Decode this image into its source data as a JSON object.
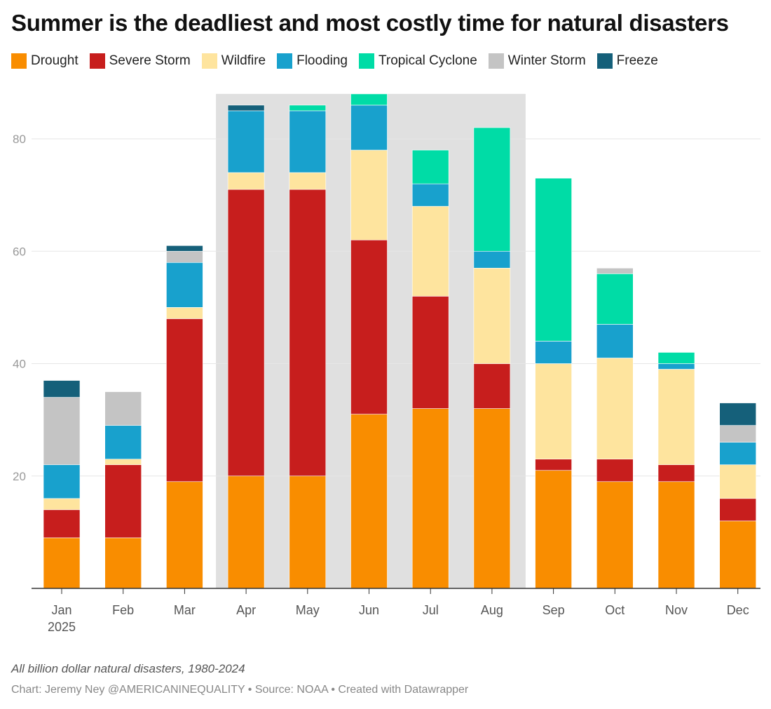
{
  "chart_data": {
    "type": "bar",
    "stacked": true,
    "title": "Summer is the deadliest and most costly time for natural disasters",
    "categories": [
      "Jan",
      "Feb",
      "Mar",
      "Apr",
      "May",
      "Jun",
      "Jul",
      "Aug",
      "Sep",
      "Oct",
      "Nov",
      "Dec"
    ],
    "first_category_sublabel": "2025",
    "highlight_range": [
      "Apr",
      "Aug"
    ],
    "ylim": [
      0,
      88
    ],
    "yticks": [
      20,
      40,
      60,
      80
    ],
    "legend_placement": "top-left",
    "series": [
      {
        "name": "Drought",
        "color": "#f98d00",
        "values": [
          9,
          9,
          19,
          20,
          20,
          31,
          32,
          32,
          21,
          19,
          19,
          12
        ]
      },
      {
        "name": "Severe Storm",
        "color": "#c71e1d",
        "values": [
          5,
          13,
          29,
          51,
          51,
          31,
          20,
          8,
          2,
          4,
          3,
          4
        ]
      },
      {
        "name": "Wildfire",
        "color": "#fee49e",
        "values": [
          2,
          1,
          2,
          3,
          3,
          16,
          16,
          17,
          17,
          18,
          17,
          6
        ]
      },
      {
        "name": "Flooding",
        "color": "#18a1cd",
        "values": [
          6,
          6,
          8,
          11,
          11,
          8,
          4,
          3,
          4,
          6,
          1,
          4
        ]
      },
      {
        "name": "Tropical Cyclone",
        "color": "#00dca6",
        "values": [
          0,
          0,
          0,
          0,
          1,
          2,
          6,
          22,
          29,
          9,
          2,
          0
        ]
      },
      {
        "name": "Winter Storm",
        "color": "#c4c4c4",
        "values": [
          12,
          6,
          2,
          0,
          0,
          0,
          0,
          0,
          0,
          1,
          0,
          3
        ]
      },
      {
        "name": "Freeze",
        "color": "#15607a",
        "values": [
          3,
          0,
          1,
          1,
          0,
          0,
          0,
          0,
          0,
          0,
          0,
          4
        ]
      }
    ]
  },
  "footer": {
    "note": "All billion dollar natural disasters, 1980-2024",
    "credit": "Chart: Jeremy Ney @AMERICANINEQUALITY • Source: NOAA • Created with Datawrapper"
  }
}
